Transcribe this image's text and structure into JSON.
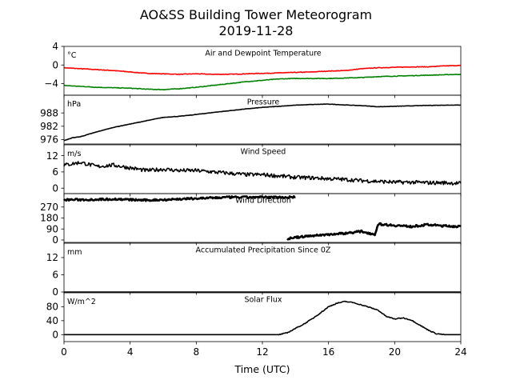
{
  "figure": {
    "title_line1": "AO&SS Building Tower Meteorogram",
    "title_line2": "2019-11-28",
    "xlabel": "Time (UTC)"
  },
  "chart_data": [
    {
      "type": "line",
      "title": "Air and Dewpoint Temperature",
      "unit_label": "°C",
      "xlim": [
        0,
        24
      ],
      "ylim": [
        -6.5,
        4
      ],
      "yticks": [
        4,
        0,
        -4
      ],
      "ytick_labels": [
        "4",
        "0",
        "−4"
      ],
      "series": [
        {
          "color": "#ff0000",
          "x": [
            0,
            1,
            2,
            3,
            4,
            5,
            6,
            7,
            8,
            9,
            10,
            11,
            12,
            13,
            14,
            15,
            16,
            17,
            18,
            19,
            20,
            21,
            22,
            23,
            24
          ],
          "y": [
            -0.6,
            -0.8,
            -1.0,
            -1.2,
            -1.5,
            -1.8,
            -1.9,
            -2.0,
            -1.9,
            -2.0,
            -2.0,
            -1.9,
            -1.8,
            -1.7,
            -1.6,
            -1.5,
            -1.3,
            -1.2,
            -0.8,
            -0.6,
            -0.5,
            -0.4,
            -0.4,
            -0.2,
            -0.1
          ]
        },
        {
          "color": "#008000",
          "x": [
            0,
            1,
            2,
            3,
            4,
            5,
            6,
            7,
            8,
            9,
            10,
            11,
            12,
            13,
            14,
            15,
            16,
            17,
            18,
            19,
            20,
            21,
            22,
            23,
            24
          ],
          "y": [
            -4.4,
            -4.6,
            -4.8,
            -4.9,
            -5.0,
            -5.2,
            -5.3,
            -5.1,
            -4.8,
            -4.4,
            -4.0,
            -3.6,
            -3.3,
            -3.0,
            -2.9,
            -2.9,
            -2.9,
            -2.8,
            -2.7,
            -2.5,
            -2.4,
            -2.3,
            -2.2,
            -2.1,
            -2.0
          ]
        }
      ]
    },
    {
      "type": "line",
      "title": "Pressure",
      "unit_label": "hPa",
      "xlim": [
        0,
        24
      ],
      "ylim": [
        974,
        996
      ],
      "yticks": [
        988,
        982,
        976
      ],
      "ytick_labels": [
        "988",
        "982",
        "976"
      ],
      "series": [
        {
          "color": "#000000",
          "x": [
            0,
            0.5,
            1,
            2,
            3,
            4,
            5,
            6,
            7,
            8,
            9,
            10,
            11,
            12,
            13,
            14,
            15,
            16,
            17,
            18,
            19,
            20,
            21,
            22,
            23,
            24
          ],
          "y": [
            975.5,
            976.8,
            977.3,
            979.5,
            981.5,
            983.0,
            984.5,
            986.0,
            986.5,
            987.3,
            988.2,
            989.0,
            989.8,
            990.5,
            991.0,
            991.5,
            991.8,
            992.0,
            991.6,
            991.3,
            990.8,
            991.0,
            991.2,
            991.4,
            991.5,
            991.6
          ]
        }
      ]
    },
    {
      "type": "line",
      "title": "Wind Speed",
      "unit_label": "m/s",
      "xlim": [
        0,
        24
      ],
      "ylim": [
        -2,
        16
      ],
      "yticks": [
        12,
        6,
        0
      ],
      "ytick_labels": [
        "12",
        "6",
        "0"
      ],
      "series": [
        {
          "color": "#000000",
          "x": [
            0,
            1,
            2,
            3,
            4,
            5,
            6,
            7,
            8,
            9,
            10,
            11,
            12,
            13,
            14,
            15,
            16,
            17,
            18,
            19,
            20,
            21,
            22,
            23,
            24
          ],
          "y": [
            8.5,
            9.5,
            8.0,
            8.5,
            7.5,
            6.5,
            7.0,
            6.5,
            6.5,
            6.0,
            5.5,
            5.0,
            5.0,
            4.5,
            4.0,
            3.8,
            3.5,
            3.2,
            2.8,
            2.5,
            2.2,
            2.2,
            2.0,
            2.0,
            1.8
          ]
        }
      ]
    },
    {
      "type": "scatter",
      "title": "Wind Direction",
      "unit_label": "",
      "xlim": [
        0,
        24
      ],
      "ylim": [
        -20,
        380
      ],
      "yticks": [
        270,
        180,
        90,
        0
      ],
      "ytick_labels": [
        "270",
        "180",
        "90",
        "0"
      ],
      "series": [
        {
          "color": "#000000",
          "x": [
            0,
            1,
            2,
            3,
            4,
            5,
            6,
            7,
            8,
            9,
            10,
            11,
            12,
            13,
            14
          ],
          "y": [
            330,
            330,
            332,
            335,
            330,
            325,
            330,
            335,
            340,
            345,
            350,
            350,
            350,
            350,
            352
          ]
        },
        {
          "color": "#000000",
          "x": [
            13.5,
            14,
            15,
            16,
            17,
            18,
            18.8,
            19,
            20,
            21,
            22,
            23,
            24
          ],
          "y": [
            10,
            20,
            35,
            45,
            55,
            70,
            45,
            130,
            120,
            110,
            125,
            115,
            110
          ]
        }
      ]
    },
    {
      "type": "line",
      "title": "Accumulated Precipitation Since 0Z",
      "unit_label": "mm",
      "xlim": [
        0,
        24
      ],
      "ylim": [
        0,
        17
      ],
      "yticks": [
        12,
        6,
        0
      ],
      "ytick_labels": [
        "12",
        "6",
        "0"
      ],
      "series": [
        {
          "color": "#000000",
          "x": [
            0,
            24
          ],
          "y": [
            0,
            0
          ]
        }
      ]
    },
    {
      "type": "line",
      "title": "Solar Flux",
      "unit_label": "W/m^2",
      "xlim": [
        0,
        24
      ],
      "ylim": [
        -20,
        120
      ],
      "yticks": [
        80,
        40,
        0
      ],
      "ytick_labels": [
        "80",
        "40",
        "0"
      ],
      "xticks": [
        0,
        4,
        8,
        12,
        16,
        20,
        24
      ],
      "xtick_labels": [
        "0",
        "4",
        "8",
        "12",
        "16",
        "20",
        "24"
      ],
      "series": [
        {
          "color": "#000000",
          "x": [
            0,
            13,
            13.5,
            14,
            14.5,
            15,
            15.5,
            16,
            16.5,
            17,
            17.5,
            18,
            18.5,
            19,
            19.5,
            20,
            20.5,
            21,
            21.5,
            22,
            22.5,
            23,
            24
          ],
          "y": [
            0,
            0,
            5,
            18,
            30,
            45,
            62,
            80,
            90,
            95,
            92,
            85,
            78,
            70,
            52,
            45,
            48,
            42,
            28,
            14,
            3,
            0,
            0
          ]
        }
      ]
    }
  ]
}
